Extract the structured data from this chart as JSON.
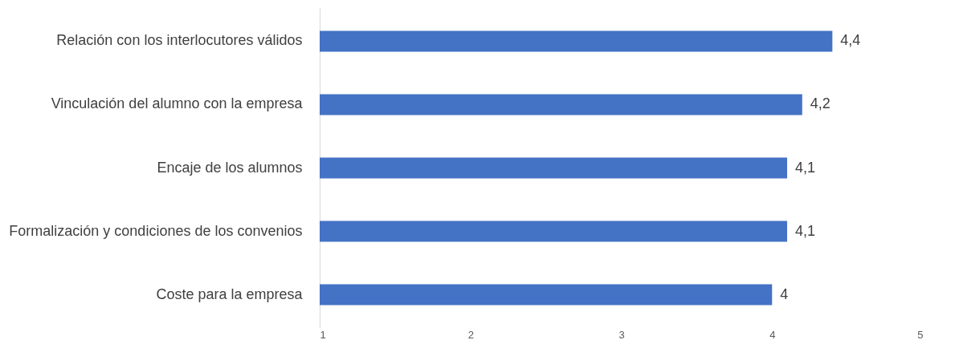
{
  "chart_data": {
    "type": "bar",
    "orientation": "horizontal",
    "categories": [
      "Relación con los interlocutores válidos",
      "Vinculación del alumno con la empresa",
      "Encaje de los alumnos",
      "Formalización y condiciones de  los convenios",
      "Coste para la empresa"
    ],
    "values": [
      4.4,
      4.2,
      4.1,
      4.1,
      4.0
    ],
    "value_labels": [
      "4,4",
      "4,2",
      "4,1",
      "4,1",
      "4"
    ],
    "color": "#4472c4",
    "xlim": [
      1,
      5
    ],
    "xticks": [
      1,
      2,
      3,
      4,
      5
    ],
    "grid": false
  }
}
